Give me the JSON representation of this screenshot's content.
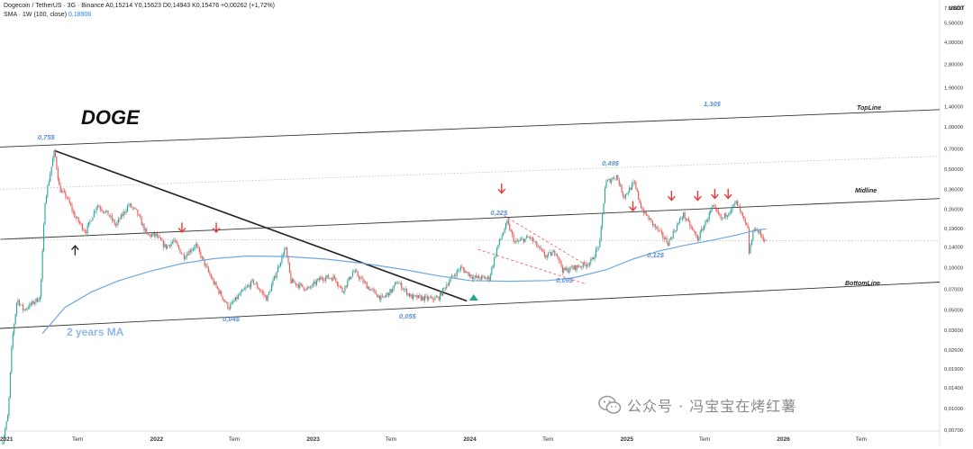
{
  "header": {
    "symbol_line": "Dogecoin / TetherUS · 3G · Binance",
    "ohlc": "A0,15214 Y0,15623 D0,14943 K0,15476 +0,00262 (+1,72%)",
    "sma_label": "SMA · 1W (100, close)",
    "sma_value": "0,18906"
  },
  "currency": "USDT",
  "ticker_title": "DOGE",
  "ma_label": "2 years MA",
  "lines": {
    "top": "TopLine",
    "mid": "Midline",
    "bottom": "BottomLine"
  },
  "price_annotations": [
    {
      "text": "0,75$",
      "date": "2021-04-20",
      "price": 0.84
    },
    {
      "text": "0,04$",
      "date": "2022-06-25",
      "price": 0.043
    },
    {
      "text": "0,05$",
      "date": "2023-08-10",
      "price": 0.045
    },
    {
      "text": "0,22$",
      "date": "2024-03-10",
      "price": 0.245
    },
    {
      "text": "0,09$",
      "date": "2024-08-10",
      "price": 0.081
    },
    {
      "text": "0,49$",
      "date": "2024-11-25",
      "price": 0.55
    },
    {
      "text": "0,12$",
      "date": "2025-03-10",
      "price": 0.122
    },
    {
      "text": "1,30$",
      "date": "2025-07-20",
      "price": 1.45
    }
  ],
  "watermark": "公众号 · 冯宝宝在烤红薯",
  "colors": {
    "up": "#26a69a",
    "down": "#ef5350",
    "sma": "#6fa8e0",
    "channel": "#333333",
    "dotted": "#bdbdbd",
    "downtrend": "#222222",
    "arrow_red": "#e53935",
    "annotation": "#5b8fd1"
  },
  "chart_data": {
    "type": "candlestick",
    "title": "Dogecoin / TetherUS · 3G · Binance",
    "y_scale": "log",
    "ylim": [
      0.0069,
      8.0
    ],
    "xlim": [
      "2021-01-01",
      "2026-12-31"
    ],
    "y_ticks": [
      "7,00000",
      "5,50000",
      "4,00000",
      "2,80000",
      "1,90000",
      "1,40000",
      "1,00000",
      "0,70000",
      "0,50000",
      "0,36000",
      "0,26000",
      "0,19000",
      "0,14000",
      "0,10000",
      "0,07000",
      "0,05000",
      "0,03600",
      "0,02600",
      "0,01900",
      "0,01400",
      "0,01000",
      "0,00700"
    ],
    "y_tick_values": [
      7.0,
      5.5,
      4.0,
      2.8,
      1.9,
      1.4,
      1.0,
      0.7,
      0.5,
      0.36,
      0.26,
      0.19,
      0.14,
      0.1,
      0.07,
      0.05,
      0.036,
      0.026,
      0.019,
      0.014,
      0.01,
      0.007
    ],
    "x_ticks": [
      {
        "label": "2021",
        "date": "2021-01-01",
        "year": true
      },
      {
        "label": "Tem",
        "date": "2021-07-01",
        "year": false
      },
      {
        "label": "2022",
        "date": "2022-01-01",
        "year": true
      },
      {
        "label": "Tem",
        "date": "2022-07-01",
        "year": false
      },
      {
        "label": "2023",
        "date": "2023-01-01",
        "year": true
      },
      {
        "label": "Tem",
        "date": "2023-07-01",
        "year": false
      },
      {
        "label": "2024",
        "date": "2024-01-01",
        "year": true
      },
      {
        "label": "Tem",
        "date": "2024-07-01",
        "year": false
      },
      {
        "label": "2025",
        "date": "2025-01-01",
        "year": true
      },
      {
        "label": "Tem",
        "date": "2025-07-01",
        "year": false
      },
      {
        "label": "2026",
        "date": "2026-01-01",
        "year": true
      },
      {
        "label": "Tem",
        "date": "2026-07-01",
        "year": false
      }
    ],
    "price_path": [
      [
        "2021-01-01",
        0.0047
      ],
      [
        "2021-01-20",
        0.009
      ],
      [
        "2021-01-29",
        0.03
      ],
      [
        "2021-02-10",
        0.06
      ],
      [
        "2021-02-25",
        0.05
      ],
      [
        "2021-03-15",
        0.055
      ],
      [
        "2021-04-05",
        0.062
      ],
      [
        "2021-04-16",
        0.3
      ],
      [
        "2021-05-08",
        0.68
      ],
      [
        "2021-05-20",
        0.36
      ],
      [
        "2021-06-05",
        0.32
      ],
      [
        "2021-06-25",
        0.23
      ],
      [
        "2021-07-20",
        0.18
      ],
      [
        "2021-08-15",
        0.28
      ],
      [
        "2021-09-10",
        0.24
      ],
      [
        "2021-09-28",
        0.2
      ],
      [
        "2021-10-28",
        0.28
      ],
      [
        "2021-11-15",
        0.25
      ],
      [
        "2021-12-10",
        0.17
      ],
      [
        "2021-12-30",
        0.17
      ],
      [
        "2022-01-22",
        0.14
      ],
      [
        "2022-02-10",
        0.155
      ],
      [
        "2022-03-05",
        0.12
      ],
      [
        "2022-04-02",
        0.145
      ],
      [
        "2022-05-12",
        0.08
      ],
      [
        "2022-06-18",
        0.052
      ],
      [
        "2022-07-15",
        0.065
      ],
      [
        "2022-08-14",
        0.08
      ],
      [
        "2022-09-15",
        0.06
      ],
      [
        "2022-10-28",
        0.14
      ],
      [
        "2022-11-10",
        0.08
      ],
      [
        "2022-12-20",
        0.07
      ],
      [
        "2023-01-20",
        0.085
      ],
      [
        "2023-02-20",
        0.085
      ],
      [
        "2023-03-10",
        0.068
      ],
      [
        "2023-04-05",
        0.095
      ],
      [
        "2023-05-10",
        0.072
      ],
      [
        "2023-06-10",
        0.06
      ],
      [
        "2023-07-05",
        0.07
      ],
      [
        "2023-07-15",
        0.08
      ],
      [
        "2023-08-17",
        0.062
      ],
      [
        "2023-10-01",
        0.06
      ],
      [
        "2023-10-20",
        0.061
      ],
      [
        "2023-11-10",
        0.078
      ],
      [
        "2023-12-10",
        0.1
      ],
      [
        "2024-01-10",
        0.085
      ],
      [
        "2024-02-15",
        0.084
      ],
      [
        "2024-03-05",
        0.14
      ],
      [
        "2024-03-28",
        0.21
      ],
      [
        "2024-04-15",
        0.15
      ],
      [
        "2024-05-20",
        0.165
      ],
      [
        "2024-06-25",
        0.12
      ],
      [
        "2024-07-20",
        0.13
      ],
      [
        "2024-08-05",
        0.095
      ],
      [
        "2024-09-15",
        0.103
      ],
      [
        "2024-10-10",
        0.11
      ],
      [
        "2024-10-30",
        0.15
      ],
      [
        "2024-11-12",
        0.4
      ],
      [
        "2024-12-08",
        0.45
      ],
      [
        "2024-12-25",
        0.32
      ],
      [
        "2025-01-18",
        0.4
      ],
      [
        "2025-02-05",
        0.26
      ],
      [
        "2025-03-05",
        0.2
      ],
      [
        "2025-04-07",
        0.15
      ],
      [
        "2025-05-12",
        0.24
      ],
      [
        "2025-06-15",
        0.16
      ],
      [
        "2025-07-20",
        0.27
      ],
      [
        "2025-08-10",
        0.22
      ],
      [
        "2025-09-13",
        0.29
      ],
      [
        "2025-10-10",
        0.185
      ],
      [
        "2025-10-11",
        0.12
      ],
      [
        "2025-10-25",
        0.195
      ],
      [
        "2025-11-10",
        0.17
      ],
      [
        "2025-11-22",
        0.152
      ]
    ],
    "sma_path": [
      [
        "2021-04-10",
        0.034
      ],
      [
        "2021-06-01",
        0.052
      ],
      [
        "2021-08-01",
        0.067
      ],
      [
        "2021-10-01",
        0.08
      ],
      [
        "2021-12-15",
        0.094
      ],
      [
        "2022-03-01",
        0.107
      ],
      [
        "2022-05-15",
        0.116
      ],
      [
        "2022-08-01",
        0.121
      ],
      [
        "2022-11-01",
        0.12
      ],
      [
        "2023-02-01",
        0.115
      ],
      [
        "2023-05-01",
        0.107
      ],
      [
        "2023-08-01",
        0.097
      ],
      [
        "2023-10-15",
        0.088
      ],
      [
        "2024-01-01",
        0.081
      ],
      [
        "2024-04-01",
        0.08
      ],
      [
        "2024-07-01",
        0.081
      ],
      [
        "2024-09-01",
        0.085
      ],
      [
        "2024-11-15",
        0.097
      ],
      [
        "2025-01-15",
        0.115
      ],
      [
        "2025-03-15",
        0.131
      ],
      [
        "2025-05-15",
        0.144
      ],
      [
        "2025-07-15",
        0.156
      ],
      [
        "2025-09-15",
        0.171
      ],
      [
        "2025-10-20",
        0.182
      ],
      [
        "2025-11-22",
        0.189
      ]
    ],
    "channel_lines": [
      {
        "name": "TopLine",
        "style": "solid",
        "from": [
          "2021-01-01",
          0.72
        ],
        "to": [
          "2026-12-31",
          1.33
        ]
      },
      {
        "name": "upper-dotted",
        "style": "dotted",
        "from": [
          "2021-01-01",
          0.36
        ],
        "to": [
          "2026-12-31",
          0.62
        ]
      },
      {
        "name": "Midline",
        "style": "solid",
        "from": [
          "2021-01-01",
          0.159
        ],
        "to": [
          "2026-12-31",
          0.31
        ]
      },
      {
        "name": "lower-dotted",
        "style": "dotted",
        "from": [
          "2021-01-01",
          0.159
        ],
        "to": [
          "2026-12-31",
          0.155
        ]
      },
      {
        "name": "BottomLine",
        "style": "solid",
        "from": [
          "2021-01-01",
          0.037
        ],
        "to": [
          "2026-12-31",
          0.079
        ]
      },
      {
        "name": "downtrend",
        "style": "solid-thick",
        "from": [
          "2021-05-08",
          0.68
        ],
        "to": [
          "2023-12-25",
          0.058
        ]
      },
      {
        "name": "flag-upper",
        "style": "dashed-red",
        "from": [
          "2024-03-10",
          0.245
        ],
        "to": [
          "2024-09-20",
          0.108
        ]
      },
      {
        "name": "flag-lower",
        "style": "dashed-red",
        "from": [
          "2024-01-20",
          0.135
        ],
        "to": [
          "2024-09-25",
          0.077
        ]
      }
    ],
    "markers": [
      {
        "kind": "down-arrow",
        "date": "2022-03-01",
        "price": 0.19
      },
      {
        "kind": "down-arrow",
        "date": "2022-05-20",
        "price": 0.19
      },
      {
        "kind": "down-arrow",
        "date": "2024-03-15",
        "price": 0.36
      },
      {
        "kind": "down-arrow",
        "date": "2025-01-15",
        "price": 0.27
      },
      {
        "kind": "down-arrow",
        "date": "2025-04-15",
        "price": 0.32
      },
      {
        "kind": "down-arrow",
        "date": "2025-06-15",
        "price": 0.32
      },
      {
        "kind": "down-arrow",
        "date": "2025-07-25",
        "price": 0.33
      },
      {
        "kind": "down-arrow",
        "date": "2025-08-25",
        "price": 0.33
      },
      {
        "kind": "up-arrow",
        "date": "2021-06-25",
        "price": 0.135
      },
      {
        "kind": "up-triangle",
        "date": "2024-01-10",
        "price": 0.062
      }
    ],
    "legend": "none",
    "grid": false
  }
}
